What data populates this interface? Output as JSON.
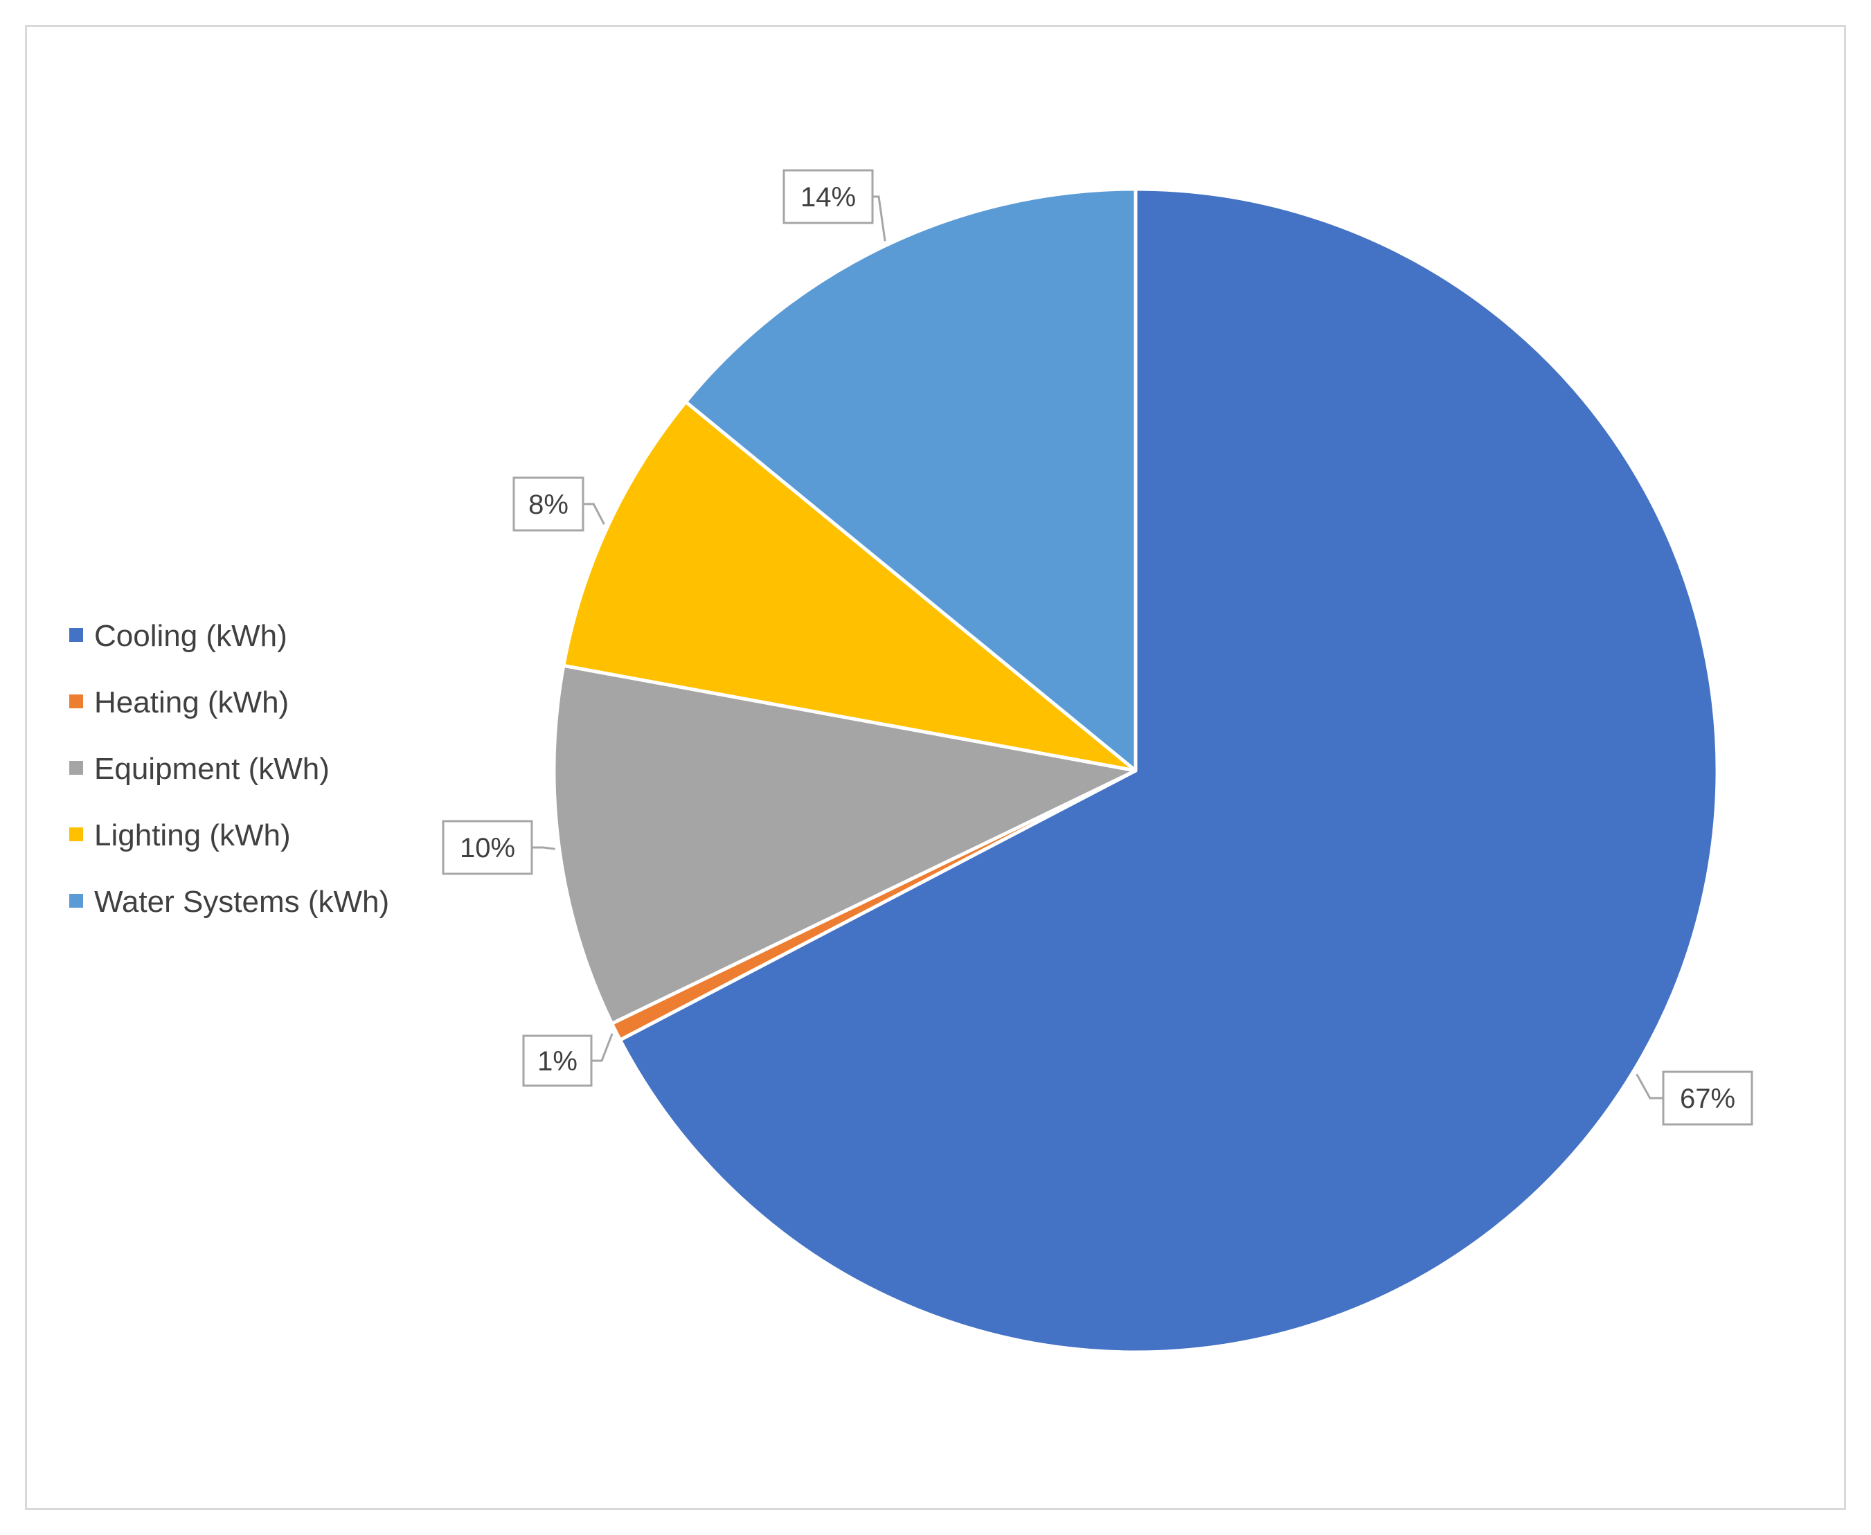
{
  "chart_data": {
    "type": "pie",
    "title": "",
    "categories": [
      "Cooling (kWh)",
      "Heating (kWh)",
      "Equipment (kWh)",
      "Lighting (kWh)",
      "Water Systems (kWh)"
    ],
    "values": [
      67,
      0.5,
      10,
      8,
      14
    ],
    "data_labels": [
      "67%",
      "1%",
      "10%",
      "8%",
      "14%"
    ],
    "colors": [
      "#4472C4",
      "#ED7D31",
      "#A5A5A5",
      "#FFC000",
      "#5B9BD5"
    ],
    "start_angle_deg": 0,
    "direction": "clockwise",
    "legend_position": "left"
  }
}
